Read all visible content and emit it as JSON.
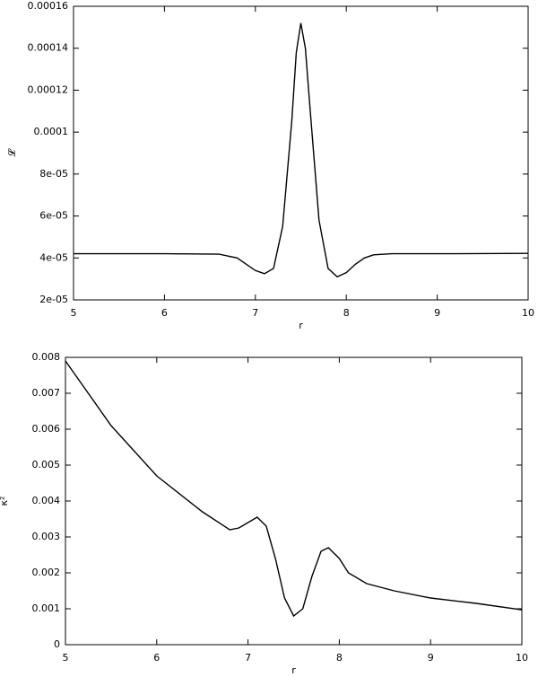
{
  "chart_data": [
    {
      "type": "line",
      "xlabel": "r",
      "ylabel": "𝓛",
      "color": "#000000",
      "x": [
        5,
        6,
        6.6,
        6.8,
        6.9,
        7.0,
        7.1,
        7.2,
        7.3,
        7.4,
        7.45,
        7.5,
        7.55,
        7.6,
        7.7,
        7.8,
        7.9,
        8.0,
        8.1,
        8.2,
        8.3,
        8.5,
        9,
        10
      ],
      "values": [
        4.2e-05,
        4.2e-05,
        4.18e-05,
        4e-05,
        3.7e-05,
        3.4e-05,
        3.25e-05,
        3.5e-05,
        5.5e-05,
        0.000105,
        0.000138,
        0.000152,
        0.00014,
        0.000112,
        5.8e-05,
        3.5e-05,
        3.1e-05,
        3.3e-05,
        3.7e-05,
        4e-05,
        4.15e-05,
        4.2e-05,
        4.2e-05,
        4.22e-05
      ],
      "xlim": [
        5,
        10
      ],
      "xticks": [
        5,
        6,
        7,
        8,
        9,
        10
      ],
      "ylim": [
        2e-05,
        0.00016
      ],
      "yticks": [
        {
          "value": 2e-05,
          "label": "2e-05"
        },
        {
          "value": 4e-05,
          "label": "4e-05"
        },
        {
          "value": 6e-05,
          "label": "6e-05"
        },
        {
          "value": 8e-05,
          "label": "8e-05"
        },
        0.0001,
        0.00012,
        0.00014,
        0.00016
      ]
    },
    {
      "type": "line",
      "xlabel": "r",
      "ylabel": "κ²",
      "color": "#000000",
      "x": [
        5,
        5.5,
        6,
        6.5,
        6.8,
        6.9,
        7.0,
        7.1,
        7.2,
        7.3,
        7.4,
        7.5,
        7.6,
        7.7,
        7.8,
        7.88,
        8.0,
        8.1,
        8.3,
        8.6,
        9,
        9.5,
        10
      ],
      "values": [
        0.0079,
        0.0061,
        0.0047,
        0.0037,
        0.0032,
        0.00325,
        0.0034,
        0.00355,
        0.0033,
        0.0024,
        0.0013,
        0.0008,
        0.001,
        0.0019,
        0.0026,
        0.0027,
        0.0024,
        0.002,
        0.0017,
        0.0015,
        0.0013,
        0.00115,
        0.00097
      ],
      "xlim": [
        5,
        10
      ],
      "xticks": [
        5,
        6,
        7,
        8,
        9,
        10
      ],
      "ylim": [
        0,
        0.008
      ],
      "yticks": [
        0,
        0.001,
        0.002,
        0.003,
        0.004,
        0.005,
        0.006,
        0.007,
        0.008
      ]
    }
  ]
}
